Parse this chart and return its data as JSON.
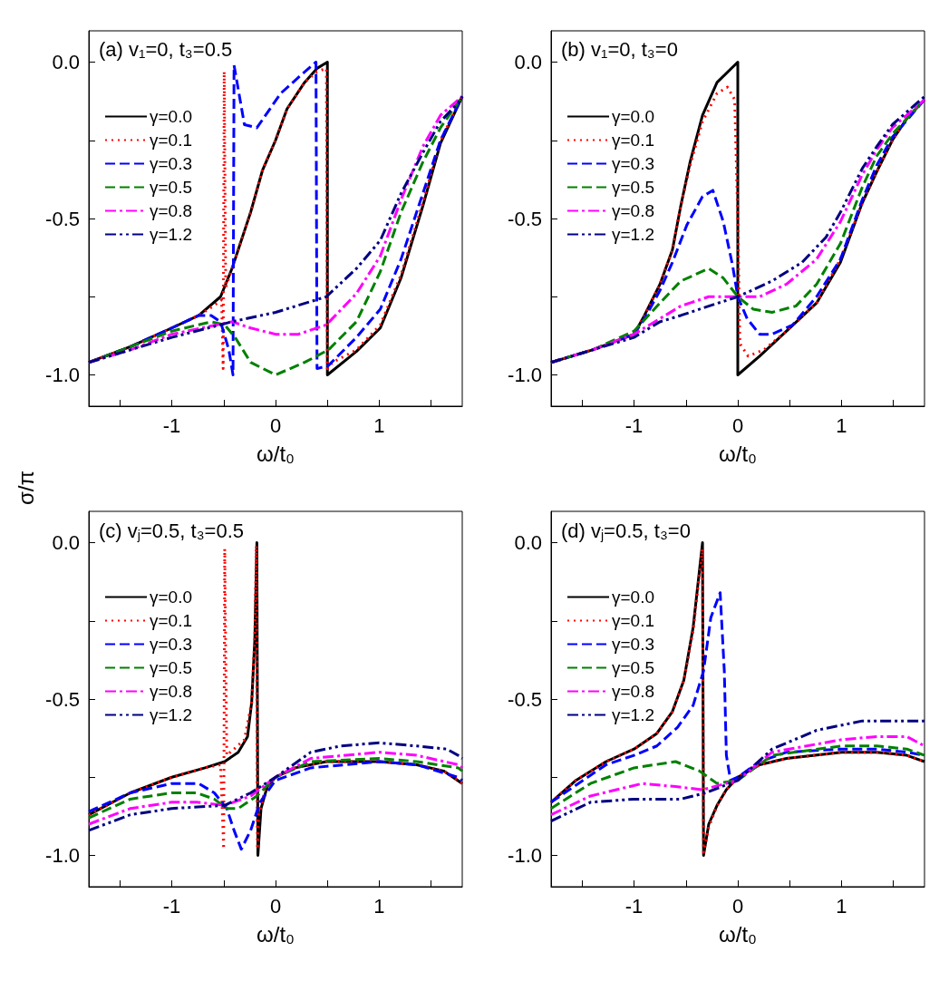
{
  "chart_data": [
    {
      "type": "line",
      "title": "(a) v₁=0, t₃=0.5",
      "xlabel": "ω/t₀",
      "ylabel": "σ/π",
      "legend": "left",
      "xlim": [
        -1.8,
        1.8
      ],
      "xticks": [
        {
          "value": -1.5,
          "label": null
        },
        -1,
        {
          "value": -0.5,
          "label": null
        },
        0,
        {
          "value": 0.5,
          "label": null
        },
        1,
        {
          "value": 1.5,
          "label": null
        }
      ],
      "ylim": [
        -1.1,
        0.1
      ],
      "yticks": [
        {
          "value": -1,
          "label": "-1.0"
        },
        {
          "value": -0.75,
          "label": null
        },
        {
          "value": -0.5,
          "label": "-0.5"
        },
        {
          "value": -0.25,
          "label": null
        },
        {
          "value": 0,
          "label": "0.0"
        }
      ],
      "series": [
        {
          "name": "γ=0.0",
          "color": "#000000",
          "line_style": "solid",
          "x": [
            -1.8,
            -1.4,
            -1,
            -0.74,
            -0.53,
            -0.42,
            -0.24,
            -0.125,
            0,
            0.11,
            0.28,
            0.4,
            0.5,
            0.5,
            0.78,
            1.01,
            1.21,
            1.42,
            1.59,
            1.8
          ],
          "values": [
            -0.96,
            -0.91,
            -0.85,
            -0.81,
            -0.75,
            -0.66,
            -0.48,
            -0.345,
            -0.25,
            -0.15,
            -0.065,
            -0.02,
            0.0,
            -1.0,
            -0.925,
            -0.85,
            -0.69,
            -0.46,
            -0.26,
            -0.11
          ]
        },
        {
          "name": "γ=0.1",
          "color": "#ff0000",
          "line_style": "dotted",
          "x": [
            -1.8,
            -1.4,
            -1,
            -0.74,
            -0.6,
            -0.52,
            -0.505,
            -0.495,
            -0.48,
            -0.42,
            -0.24,
            -0.125,
            0,
            0.11,
            0.28,
            0.4,
            0.49,
            0.5,
            0.55,
            0.78,
            1.01,
            1.21,
            1.42,
            1.59,
            1.8
          ],
          "values": [
            -0.96,
            -0.91,
            -0.85,
            -0.81,
            -0.78,
            -0.76,
            -0.98,
            -0.03,
            -0.72,
            -0.66,
            -0.48,
            -0.345,
            -0.25,
            -0.15,
            -0.065,
            -0.03,
            -0.02,
            -0.98,
            -0.96,
            -0.92,
            -0.84,
            -0.68,
            -0.45,
            -0.25,
            -0.11
          ]
        },
        {
          "name": "γ=0.3",
          "color": "#0000ff",
          "line_style": "dashed",
          "x": [
            -1.8,
            -1.4,
            -1,
            -0.74,
            -0.62,
            -0.53,
            -0.45,
            -0.41,
            -0.4,
            -0.3,
            -0.18,
            0.05,
            0.25,
            0.39,
            0.4,
            0.51,
            0.78,
            1.01,
            1.21,
            1.42,
            1.59,
            1.8
          ],
          "values": [
            -0.96,
            -0.91,
            -0.85,
            -0.81,
            -0.81,
            -0.83,
            -0.92,
            -1.0,
            -0.01,
            -0.2,
            -0.21,
            -0.1,
            -0.04,
            0.0,
            -0.98,
            -0.97,
            -0.88,
            -0.79,
            -0.63,
            -0.42,
            -0.25,
            -0.11
          ]
        },
        {
          "name": "γ=0.5",
          "color": "#008000",
          "line_style": "dashed",
          "x": [
            -1.8,
            -1.4,
            -1,
            -0.62,
            -0.49,
            -0.39,
            -0.24,
            0,
            0.28,
            0.51,
            0.78,
            1.01,
            1.21,
            1.42,
            1.59,
            1.8
          ],
          "values": [
            -0.96,
            -0.91,
            -0.86,
            -0.83,
            -0.84,
            -0.88,
            -0.96,
            -1.0,
            -0.96,
            -0.92,
            -0.83,
            -0.67,
            -0.48,
            -0.32,
            -0.21,
            -0.11
          ]
        },
        {
          "name": "γ=0.8",
          "color": "#ff00ff",
          "line_style": "dashdot",
          "x": [
            -1.8,
            -1.4,
            -1,
            -0.42,
            -0.24,
            0,
            0.22,
            0.49,
            0.78,
            1.01,
            1.21,
            1.42,
            1.59,
            1.8
          ],
          "values": [
            -0.96,
            -0.92,
            -0.87,
            -0.83,
            -0.85,
            -0.87,
            -0.87,
            -0.84,
            -0.74,
            -0.62,
            -0.44,
            -0.27,
            -0.17,
            -0.11
          ]
        },
        {
          "name": "γ=1.2",
          "color": "#000080",
          "line_style": "dashdotdot",
          "x": [
            -1.8,
            -1.4,
            -1,
            -0.42,
            0,
            0.49,
            0.78,
            1.01,
            1.21,
            1.42,
            1.59,
            1.76,
            1.8
          ],
          "values": [
            -0.96,
            -0.92,
            -0.88,
            -0.83,
            -0.8,
            -0.75,
            -0.66,
            -0.57,
            -0.42,
            -0.29,
            -0.19,
            -0.13,
            -0.11
          ]
        }
      ]
    },
    {
      "type": "line",
      "title": "(b) v₁=0, t₃=0",
      "xlabel": "ω/t₀",
      "legend": "left",
      "xlim": [
        -1.8,
        1.8
      ],
      "xticks": [
        {
          "value": -1.5,
          "label": null
        },
        -1,
        {
          "value": -0.5,
          "label": null
        },
        0,
        {
          "value": 0.5,
          "label": null
        },
        1,
        {
          "value": 1.5,
          "label": null
        }
      ],
      "ylim": [
        -1.1,
        0.1
      ],
      "yticks": [
        {
          "value": -1,
          "label": "-1.0"
        },
        {
          "value": -0.75,
          "label": null
        },
        {
          "value": -0.5,
          "label": "-0.5"
        },
        {
          "value": -0.25,
          "label": null
        },
        {
          "value": 0,
          "label": "0.0"
        }
      ],
      "series": [
        {
          "name": "γ=0.0",
          "color": "#000000",
          "line_style": "solid",
          "x": [
            -1.8,
            -1.4,
            -1,
            -0.9,
            -0.75,
            -0.63,
            -0.55,
            -0.46,
            -0.34,
            -0.2,
            0,
            0,
            0.21,
            0.47,
            0.76,
            0.99,
            1.2,
            1.34,
            1.49,
            1.63,
            1.8
          ],
          "values": [
            -0.96,
            -0.92,
            -0.87,
            -0.81,
            -0.71,
            -0.6,
            -0.46,
            -0.32,
            -0.17,
            -0.065,
            0.0,
            -1.0,
            -0.94,
            -0.86,
            -0.77,
            -0.64,
            -0.45,
            -0.35,
            -0.25,
            -0.18,
            -0.12
          ]
        },
        {
          "name": "γ=0.1",
          "color": "#ff0000",
          "line_style": "dotted",
          "x": [
            -1.8,
            -1.4,
            -1,
            -0.9,
            -0.75,
            -0.63,
            -0.55,
            -0.46,
            -0.34,
            -0.2,
            -0.1,
            -0.03,
            0,
            0.02,
            0.1,
            0.25,
            0.47,
            0.76,
            0.99,
            1.2,
            1.34,
            1.49,
            1.63,
            1.8
          ],
          "values": [
            -0.96,
            -0.92,
            -0.87,
            -0.81,
            -0.71,
            -0.6,
            -0.46,
            -0.33,
            -0.19,
            -0.1,
            -0.08,
            -0.12,
            -0.5,
            -0.9,
            -0.94,
            -0.92,
            -0.86,
            -0.77,
            -0.63,
            -0.45,
            -0.35,
            -0.25,
            -0.18,
            -0.12
          ]
        },
        {
          "name": "γ=0.3",
          "color": "#0000ff",
          "line_style": "dashed",
          "x": [
            -1.8,
            -1.4,
            -1,
            -0.9,
            -0.75,
            -0.63,
            -0.49,
            -0.34,
            -0.24,
            -0.14,
            -0.05,
            0,
            0.09,
            0.21,
            0.33,
            0.53,
            0.76,
            0.99,
            1.2,
            1.34,
            1.49,
            1.8
          ],
          "values": [
            -0.96,
            -0.92,
            -0.87,
            -0.82,
            -0.73,
            -0.64,
            -0.52,
            -0.43,
            -0.41,
            -0.51,
            -0.65,
            -0.75,
            -0.82,
            -0.87,
            -0.87,
            -0.84,
            -0.75,
            -0.63,
            -0.44,
            -0.33,
            -0.24,
            -0.12
          ]
        },
        {
          "name": "γ=0.5",
          "color": "#008000",
          "line_style": "dashed",
          "x": [
            -1.8,
            -1.4,
            -1,
            -0.75,
            -0.55,
            -0.28,
            -0.14,
            0,
            0.15,
            0.33,
            0.56,
            0.76,
            0.99,
            1.2,
            1.34,
            1.49,
            1.8
          ],
          "values": [
            -0.96,
            -0.92,
            -0.86,
            -0.77,
            -0.7,
            -0.66,
            -0.69,
            -0.75,
            -0.79,
            -0.8,
            -0.78,
            -0.71,
            -0.58,
            -0.4,
            -0.3,
            -0.23,
            -0.12
          ]
        },
        {
          "name": "γ=0.8",
          "color": "#ff00ff",
          "line_style": "dashdot",
          "x": [
            -1.8,
            -1.4,
            -1,
            -0.75,
            -0.55,
            -0.28,
            0,
            0.21,
            0.47,
            0.76,
            0.99,
            1.2,
            1.34,
            1.49,
            1.8
          ],
          "values": [
            -0.96,
            -0.92,
            -0.87,
            -0.82,
            -0.78,
            -0.75,
            -0.75,
            -0.75,
            -0.71,
            -0.63,
            -0.51,
            -0.36,
            -0.28,
            -0.21,
            -0.12
          ]
        },
        {
          "name": "γ=1.2",
          "color": "#000080",
          "line_style": "dashdotdot",
          "x": [
            -1.8,
            -1.4,
            -1,
            -0.75,
            -0.55,
            -0.28,
            0,
            0.33,
            0.62,
            0.85,
            0.99,
            1.2,
            1.34,
            1.49,
            1.8
          ],
          "values": [
            -0.96,
            -0.92,
            -0.88,
            -0.83,
            -0.81,
            -0.78,
            -0.75,
            -0.7,
            -0.64,
            -0.56,
            -0.48,
            -0.34,
            -0.27,
            -0.2,
            -0.11
          ]
        }
      ]
    },
    {
      "type": "line",
      "title": "(c) v$_{j}$=0.5, t₃=0.5",
      "xlabel": "ω/t₀",
      "legend": "left",
      "xlim": [
        -1.8,
        1.8
      ],
      "xticks": [
        {
          "value": -1.5,
          "label": null
        },
        -1,
        {
          "value": -0.5,
          "label": null
        },
        0,
        {
          "value": 0.5,
          "label": null
        },
        1,
        {
          "value": 1.5,
          "label": null
        }
      ],
      "ylim": [
        -1.1,
        0.1
      ],
      "yticks": [
        {
          "value": -1,
          "label": "-1.0"
        },
        {
          "value": -0.75,
          "label": null
        },
        {
          "value": -0.5,
          "label": "-0.5"
        },
        {
          "value": -0.25,
          "label": null
        },
        {
          "value": 0,
          "label": "0.0"
        }
      ],
      "series": [
        {
          "name": "γ=0.0",
          "color": "#000000",
          "line_style": "solid",
          "x": [
            -1.8,
            -1.4,
            -1,
            -0.68,
            -0.49,
            -0.36,
            -0.27,
            -0.23,
            -0.2,
            -0.18,
            -0.17,
            -0.14,
            -0.08,
            0,
            0.19,
            0.49,
            1,
            1.36,
            1.62,
            1.8
          ],
          "values": [
            -0.87,
            -0.8,
            -0.75,
            -0.72,
            -0.7,
            -0.67,
            -0.62,
            -0.51,
            -0.31,
            0.0,
            -1.0,
            -0.85,
            -0.78,
            -0.75,
            -0.72,
            -0.7,
            -0.7,
            -0.71,
            -0.73,
            -0.77
          ]
        },
        {
          "name": "γ=0.1",
          "color": "#ff0000",
          "line_style": "dotted",
          "x": [
            -1.8,
            -1.4,
            -1,
            -0.68,
            -0.53,
            -0.5,
            -0.49,
            -0.47,
            -0.4,
            -0.3,
            -0.23,
            -0.2,
            -0.185,
            -0.175,
            -0.16,
            -0.1,
            0,
            0.19,
            0.49,
            1,
            1.36,
            1.62,
            1.8
          ],
          "values": [
            -0.87,
            -0.8,
            -0.75,
            -0.72,
            -0.71,
            -0.98,
            -0.02,
            -0.68,
            -0.66,
            -0.63,
            -0.51,
            -0.3,
            -0.01,
            -0.98,
            -0.87,
            -0.79,
            -0.75,
            -0.72,
            -0.7,
            -0.7,
            -0.71,
            -0.73,
            -0.77
          ]
        },
        {
          "name": "γ=0.3",
          "color": "#0000ff",
          "line_style": "dashed",
          "x": [
            -1.8,
            -1.4,
            -1,
            -0.74,
            -0.59,
            -0.47,
            -0.4,
            -0.33,
            -0.24,
            -0.15,
            0,
            0.34,
            1,
            1.36,
            1.76,
            1.8
          ],
          "values": [
            -0.86,
            -0.8,
            -0.77,
            -0.77,
            -0.8,
            -0.85,
            -0.92,
            -0.98,
            -0.92,
            -0.83,
            -0.76,
            -0.72,
            -0.7,
            -0.71,
            -0.75,
            -0.76
          ]
        },
        {
          "name": "γ=0.5",
          "color": "#008000",
          "line_style": "dashed",
          "x": [
            -1.8,
            -1.4,
            -1,
            -0.76,
            -0.59,
            -0.47,
            -0.36,
            -0.18,
            0,
            0.34,
            1,
            1.36,
            1.76,
            1.8
          ],
          "values": [
            -0.88,
            -0.82,
            -0.8,
            -0.8,
            -0.82,
            -0.85,
            -0.85,
            -0.81,
            -0.75,
            -0.7,
            -0.69,
            -0.7,
            -0.72,
            -0.73
          ]
        },
        {
          "name": "γ=0.8",
          "color": "#ff00ff",
          "line_style": "dashdot",
          "x": [
            -1.8,
            -1.4,
            -1,
            -0.76,
            -0.49,
            -0.24,
            0,
            0.34,
            1,
            1.36,
            1.76,
            1.8
          ],
          "values": [
            -0.9,
            -0.85,
            -0.83,
            -0.83,
            -0.84,
            -0.81,
            -0.75,
            -0.69,
            -0.67,
            -0.68,
            -0.71,
            -0.72
          ]
        },
        {
          "name": "γ=1.2",
          "color": "#000080",
          "line_style": "dashdotdot",
          "x": [
            -1.8,
            -1.4,
            -1,
            -0.49,
            -0.24,
            0,
            0.34,
            0.63,
            1,
            1.36,
            1.65,
            1.76,
            1.8
          ],
          "values": [
            -0.92,
            -0.87,
            -0.85,
            -0.84,
            -0.8,
            -0.75,
            -0.67,
            -0.65,
            -0.64,
            -0.65,
            -0.66,
            -0.68,
            -0.69
          ]
        }
      ]
    },
    {
      "type": "line",
      "title": "(d) v$_{j}$=0.5, t₃=0",
      "xlabel": "ω/t₀",
      "legend": "left",
      "xlim": [
        -1.8,
        1.8
      ],
      "xticks": [
        {
          "value": -1.5,
          "label": null
        },
        -1,
        {
          "value": -0.5,
          "label": null
        },
        0,
        {
          "value": 0.5,
          "label": null
        },
        1,
        {
          "value": 1.5,
          "label": null
        }
      ],
      "ylim": [
        -1.1,
        0.1
      ],
      "yticks": [
        {
          "value": -1,
          "label": "-1.0"
        },
        {
          "value": -0.75,
          "label": null
        },
        {
          "value": -0.5,
          "label": "-0.5"
        },
        {
          "value": -0.25,
          "label": null
        },
        {
          "value": 0,
          "label": "0.0"
        }
      ],
      "series": [
        {
          "name": "γ=0.0",
          "color": "#000000",
          "line_style": "solid",
          "x": [
            -1.8,
            -1.56,
            -1.27,
            -1,
            -0.78,
            -0.63,
            -0.52,
            -0.43,
            -0.39,
            -0.34,
            -0.33,
            -0.28,
            -0.2,
            -0.11,
            0,
            0.21,
            0.47,
            1,
            1.34,
            1.63,
            1.8
          ],
          "values": [
            -0.83,
            -0.76,
            -0.7,
            -0.66,
            -0.61,
            -0.54,
            -0.44,
            -0.27,
            -0.15,
            0.0,
            -1.0,
            -0.9,
            -0.84,
            -0.79,
            -0.75,
            -0.71,
            -0.69,
            -0.67,
            -0.67,
            -0.68,
            -0.7
          ]
        },
        {
          "name": "γ=0.1",
          "color": "#ff0000",
          "line_style": "dotted",
          "x": [
            -1.8,
            -1.56,
            -1.27,
            -1,
            -0.78,
            -0.63,
            -0.52,
            -0.43,
            -0.39,
            -0.34,
            -0.33,
            -0.28,
            -0.2,
            -0.11,
            0,
            0.21,
            0.47,
            1,
            1.34,
            1.63,
            1.8
          ],
          "values": [
            -0.83,
            -0.76,
            -0.7,
            -0.66,
            -0.61,
            -0.54,
            -0.44,
            -0.28,
            -0.16,
            -0.02,
            -0.99,
            -0.91,
            -0.84,
            -0.79,
            -0.75,
            -0.71,
            -0.69,
            -0.67,
            -0.67,
            -0.68,
            -0.7
          ]
        },
        {
          "name": "γ=0.3",
          "color": "#0000ff",
          "line_style": "dashed",
          "x": [
            -1.8,
            -1.27,
            -1,
            -0.78,
            -0.58,
            -0.43,
            -0.33,
            -0.26,
            -0.17,
            -0.13,
            -0.11,
            -0.07,
            0,
            0.21,
            0.47,
            1,
            1.34,
            1.63,
            1.8
          ],
          "values": [
            -0.83,
            -0.71,
            -0.68,
            -0.65,
            -0.59,
            -0.52,
            -0.41,
            -0.24,
            -0.16,
            -0.41,
            -0.68,
            -0.76,
            -0.75,
            -0.7,
            -0.67,
            -0.66,
            -0.66,
            -0.67,
            -0.68
          ]
        },
        {
          "name": "γ=0.5",
          "color": "#008000",
          "line_style": "dashed",
          "x": [
            -1.8,
            -1.42,
            -1,
            -0.6,
            -0.37,
            -0.2,
            0,
            0.33,
            1,
            1.34,
            1.63,
            1.8
          ],
          "values": [
            -0.85,
            -0.77,
            -0.72,
            -0.7,
            -0.73,
            -0.77,
            -0.76,
            -0.68,
            -0.65,
            -0.65,
            -0.66,
            -0.68
          ]
        },
        {
          "name": "γ=0.8",
          "color": "#ff00ff",
          "line_style": "dashdot",
          "x": [
            -1.8,
            -1.42,
            -0.92,
            -0.6,
            -0.34,
            0,
            0.33,
            1,
            1.34,
            1.63,
            1.8
          ],
          "values": [
            -0.87,
            -0.81,
            -0.77,
            -0.78,
            -0.79,
            -0.76,
            -0.67,
            -0.63,
            -0.62,
            -0.62,
            -0.65
          ]
        },
        {
          "name": "γ=1.2",
          "color": "#000080",
          "line_style": "dashdotdot",
          "x": [
            -1.8,
            -1.42,
            -1,
            -0.55,
            -0.31,
            0,
            0.33,
            0.76,
            1.2,
            1.63,
            1.8
          ],
          "values": [
            -0.89,
            -0.83,
            -0.82,
            -0.82,
            -0.8,
            -0.76,
            -0.66,
            -0.6,
            -0.57,
            -0.57,
            -0.57
          ]
        }
      ]
    }
  ]
}
